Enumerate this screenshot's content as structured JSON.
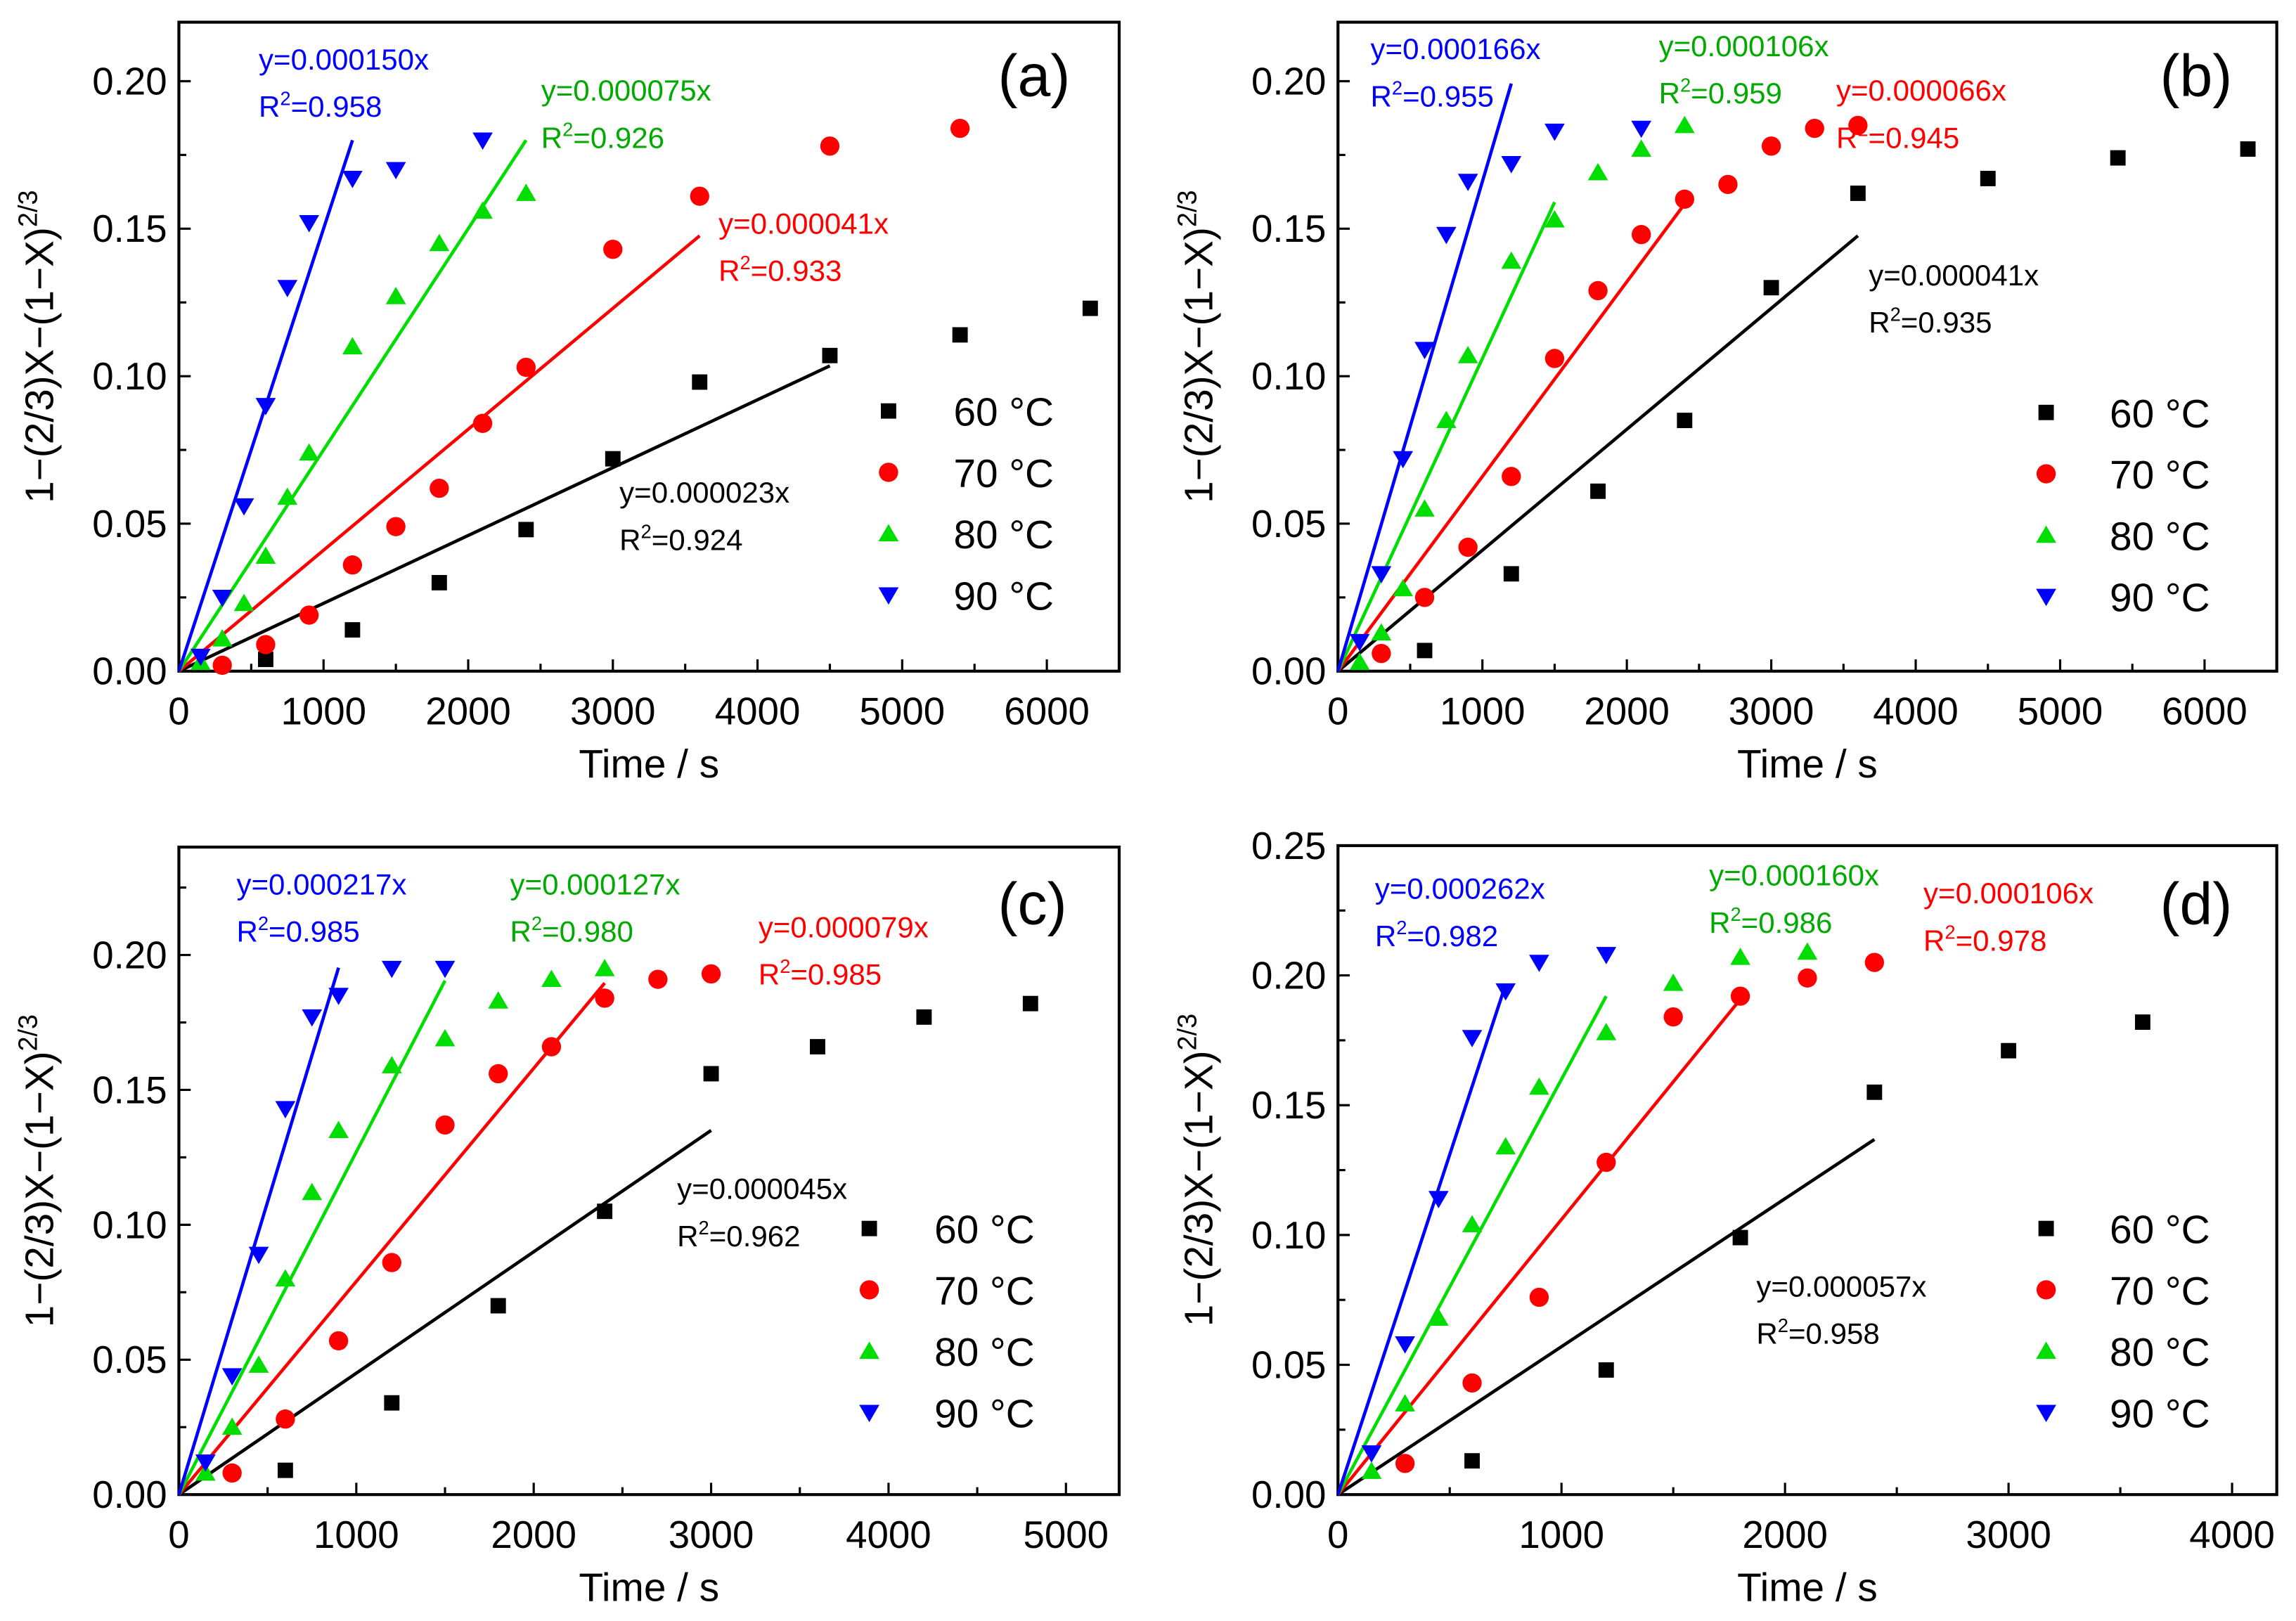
{
  "colors": {
    "60 °C": "#000000",
    "70 °C": "#ff0000",
    "80 °C": "#00dd00",
    "90 °C": "#0000ff",
    "fit80": "#00aa00"
  },
  "chart_data": [
    {
      "type": "scatter",
      "panel_label": "(a)",
      "xlabel": "Time / s",
      "ylabel": "1−(2/3)X−(1−X)",
      "ylabel_sup": "2/3",
      "xlim": [
        0,
        6500
      ],
      "ylim": [
        0,
        0.22
      ],
      "xticks": [
        0,
        1000,
        2000,
        3000,
        4000,
        5000,
        6000
      ],
      "yticks": [
        0.0,
        0.05,
        0.1,
        0.15,
        0.2
      ],
      "legend_placement": "right",
      "series": [
        {
          "name": "60 °C",
          "marker": "square",
          "x": [
            600,
            1200,
            1800,
            2400,
            3000,
            3600,
            4500,
            5400,
            6300
          ],
          "y": [
            0.004,
            0.014,
            0.03,
            0.048,
            0.072,
            0.098,
            0.107,
            0.114,
            0.123
          ],
          "fit": {
            "equation": "y=0.000023x",
            "r2": "0.924",
            "slope": 2.3e-05,
            "xmax": 4500
          }
        },
        {
          "name": "70 °C",
          "marker": "circle",
          "x": [
            300,
            600,
            900,
            1200,
            1500,
            1800,
            2100,
            2400,
            3000,
            3600,
            4500,
            5400
          ],
          "y": [
            0.002,
            0.009,
            0.019,
            0.036,
            0.049,
            0.062,
            0.084,
            0.103,
            0.143,
            0.161,
            0.178,
            0.184
          ],
          "fit": {
            "equation": "y=0.000041x",
            "r2": "0.933",
            "slope": 4.1e-05,
            "xmax": 3600
          }
        },
        {
          "name": "80 °C",
          "marker": "triangle-up",
          "x": [
            150,
            300,
            450,
            600,
            750,
            900,
            1200,
            1500,
            1800,
            2100,
            2400
          ],
          "y": [
            0.003,
            0.011,
            0.023,
            0.039,
            0.059,
            0.074,
            0.11,
            0.127,
            0.145,
            0.156,
            0.162
          ],
          "fit": {
            "equation": "y=0.000075x",
            "r2": "0.926",
            "slope": 7.5e-05,
            "xmax": 2400
          }
        },
        {
          "name": "90 °C",
          "marker": "triangle-down",
          "x": [
            150,
            300,
            450,
            600,
            750,
            900,
            1200,
            1500,
            2100
          ],
          "y": [
            0.005,
            0.025,
            0.056,
            0.09,
            0.13,
            0.152,
            0.167,
            0.17,
            0.18
          ],
          "fit": {
            "equation": "y=0.000150x",
            "r2": "0.958",
            "slope": 0.00015,
            "xmax": 1200
          }
        }
      ]
    },
    {
      "type": "scatter",
      "panel_label": "(b)",
      "xlabel": "Time / s",
      "ylabel": "1−(2/3)X−(1−X)",
      "ylabel_sup": "2/3",
      "xlim": [
        0,
        6500
      ],
      "ylim": [
        0,
        0.22
      ],
      "xticks": [
        0,
        1000,
        2000,
        3000,
        4000,
        5000,
        6000
      ],
      "yticks": [
        0.0,
        0.05,
        0.1,
        0.15,
        0.2
      ],
      "legend_placement": "right",
      "series": [
        {
          "name": "60 °C",
          "marker": "square",
          "x": [
            600,
            1200,
            1800,
            2400,
            3000,
            3600,
            4500,
            5400,
            6300
          ],
          "y": [
            0.007,
            0.033,
            0.061,
            0.085,
            0.13,
            0.162,
            0.167,
            0.174,
            0.177
          ],
          "fit": {
            "equation": "y=0.000041x",
            "r2": "0.935",
            "slope": 4.1e-05,
            "xmax": 3600
          }
        },
        {
          "name": "70 °C",
          "marker": "circle",
          "x": [
            300,
            600,
            900,
            1200,
            1500,
            1800,
            2100,
            2400,
            2700,
            3000,
            3300,
            3600
          ],
          "y": [
            0.006,
            0.025,
            0.042,
            0.066,
            0.106,
            0.129,
            0.148,
            0.16,
            0.165,
            0.178,
            0.184,
            0.185
          ],
          "fit": {
            "equation": "y=0.000066x",
            "r2": "0.945",
            "slope": 6.6e-05,
            "xmax": 2400
          }
        },
        {
          "name": "80 °C",
          "marker": "triangle-up",
          "x": [
            150,
            300,
            450,
            600,
            750,
            900,
            1200,
            1500,
            1800,
            2100,
            2400
          ],
          "y": [
            0.003,
            0.013,
            0.028,
            0.055,
            0.085,
            0.107,
            0.139,
            0.153,
            0.169,
            0.177,
            0.185
          ],
          "fit": {
            "equation": "y=0.000106x",
            "r2": "0.959",
            "slope": 0.000106,
            "xmax": 1500
          }
        },
        {
          "name": "90 °C",
          "marker": "triangle-down",
          "x": [
            150,
            300,
            450,
            600,
            750,
            900,
            1200,
            1500,
            2100
          ],
          "y": [
            0.01,
            0.033,
            0.072,
            0.109,
            0.148,
            0.166,
            0.172,
            0.183,
            0.184
          ],
          "fit": {
            "equation": "y=0.000166x",
            "r2": "0.955",
            "slope": 0.000166,
            "xmax": 1200
          }
        }
      ]
    },
    {
      "type": "scatter",
      "panel_label": "(c)",
      "xlabel": "Time / s",
      "ylabel": "1−(2/3)X−(1−X)",
      "ylabel_sup": "2/3",
      "xlim": [
        0,
        5300
      ],
      "ylim": [
        0,
        0.24
      ],
      "xticks": [
        0,
        1000,
        2000,
        3000,
        4000,
        5000
      ],
      "yticks": [
        0.0,
        0.05,
        0.1,
        0.15,
        0.2
      ],
      "legend_placement": "right",
      "series": [
        {
          "name": "60 °C",
          "marker": "square",
          "x": [
            600,
            1200,
            1800,
            2400,
            3000,
            3600,
            4200,
            4800
          ],
          "y": [
            0.009,
            0.034,
            0.07,
            0.105,
            0.156,
            0.166,
            0.177,
            0.182
          ],
          "fit": {
            "equation": "y=0.000045x",
            "r2": "0.962",
            "slope": 4.5e-05,
            "xmax": 3000
          }
        },
        {
          "name": "70 °C",
          "marker": "circle",
          "x": [
            300,
            600,
            900,
            1200,
            1500,
            1800,
            2100,
            2400,
            2700,
            3000
          ],
          "y": [
            0.008,
            0.028,
            0.057,
            0.086,
            0.137,
            0.156,
            0.166,
            0.184,
            0.191,
            0.193
          ],
          "fit": {
            "equation": "y=0.000079x",
            "r2": "0.985",
            "slope": 7.9e-05,
            "xmax": 2400
          }
        },
        {
          "name": "80 °C",
          "marker": "triangle-up",
          "x": [
            150,
            300,
            450,
            600,
            750,
            900,
            1200,
            1500,
            1800,
            2100,
            2400
          ],
          "y": [
            0.008,
            0.025,
            0.048,
            0.08,
            0.112,
            0.135,
            0.159,
            0.169,
            0.183,
            0.191,
            0.195
          ],
          "fit": {
            "equation": "y=0.000127x",
            "r2": "0.980",
            "slope": 0.000127,
            "xmax": 1500
          }
        },
        {
          "name": "90 °C",
          "marker": "triangle-down",
          "x": [
            150,
            300,
            450,
            600,
            750,
            900,
            1200,
            1500
          ],
          "y": [
            0.012,
            0.044,
            0.089,
            0.143,
            0.177,
            0.185,
            0.195,
            0.195
          ],
          "fit": {
            "equation": "y=0.000217x",
            "r2": "0.985",
            "slope": 0.000217,
            "xmax": 900
          }
        }
      ]
    },
    {
      "type": "scatter",
      "panel_label": "(d)",
      "xlabel": "Time / s",
      "ylabel": "1−(2/3)X−(1−X)",
      "ylabel_sup": "2/3",
      "xlim": [
        0,
        4200
      ],
      "ylim": [
        0,
        0.25
      ],
      "xticks": [
        0,
        1000,
        2000,
        3000,
        4000
      ],
      "yticks": [
        0.0,
        0.05,
        0.1,
        0.15,
        0.2,
        0.25
      ],
      "legend_placement": "right",
      "series": [
        {
          "name": "60 °C",
          "marker": "square",
          "x": [
            600,
            1200,
            1800,
            2400,
            3000,
            3600
          ],
          "y": [
            0.013,
            0.048,
            0.099,
            0.155,
            0.171,
            0.182
          ],
          "fit": {
            "equation": "y=0.000057x",
            "r2": "0.958",
            "slope": 5.7e-05,
            "xmax": 2400
          }
        },
        {
          "name": "70 °C",
          "marker": "circle",
          "x": [
            300,
            600,
            900,
            1200,
            1500,
            1800,
            2100,
            2400
          ],
          "y": [
            0.012,
            0.043,
            0.076,
            0.128,
            0.184,
            0.192,
            0.199,
            0.205
          ],
          "fit": {
            "equation": "y=0.000106x",
            "r2": "0.978",
            "slope": 0.000106,
            "xmax": 1800
          }
        },
        {
          "name": "80 °C",
          "marker": "triangle-up",
          "x": [
            150,
            300,
            450,
            600,
            750,
            900,
            1200,
            1500,
            1800,
            2100
          ],
          "y": [
            0.009,
            0.035,
            0.068,
            0.104,
            0.134,
            0.157,
            0.178,
            0.197,
            0.207,
            0.209
          ],
          "fit": {
            "equation": "y=0.000160x",
            "r2": "0.986",
            "slope": 0.00016,
            "xmax": 1200
          }
        },
        {
          "name": "90 °C",
          "marker": "triangle-down",
          "x": [
            150,
            300,
            450,
            600,
            750,
            900,
            1200
          ],
          "y": [
            0.016,
            0.058,
            0.114,
            0.176,
            0.194,
            0.205,
            0.208
          ],
          "fit": {
            "equation": "y=0.000262x",
            "r2": "0.982",
            "slope": 0.000262,
            "xmax": 750
          }
        }
      ]
    }
  ]
}
